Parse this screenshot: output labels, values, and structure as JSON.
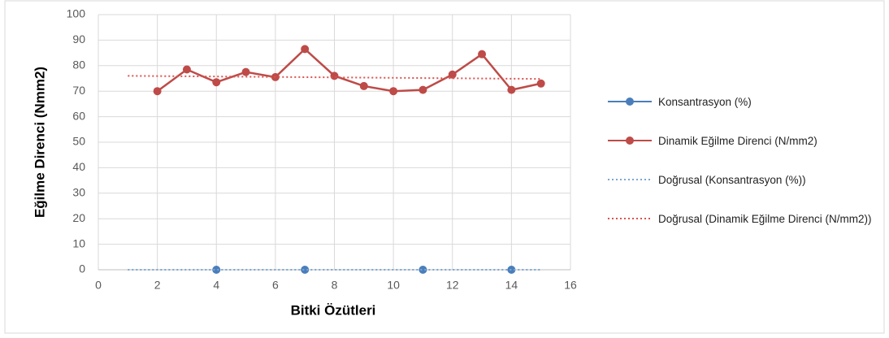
{
  "chart_data": {
    "type": "scatter",
    "xlabel": "Bitki Özütleri",
    "ylabel": "Eğilme Direnci (Nmm2)",
    "xlim": [
      0,
      16
    ],
    "xticks": [
      0,
      2,
      4,
      6,
      8,
      10,
      12,
      14,
      16
    ],
    "ylim": [
      0,
      100
    ],
    "yticks": [
      0,
      10,
      20,
      30,
      40,
      50,
      60,
      70,
      80,
      90,
      100
    ],
    "grid": true,
    "legend": "right",
    "series": [
      {
        "name": "Konsantrasyon (%)",
        "color": "#4a7ebb",
        "x": [
          4,
          7,
          11,
          14
        ],
        "values": [
          0,
          0,
          0,
          0
        ],
        "marker": true,
        "line": false
      },
      {
        "name": "Dinamik Eğilme Direnci (N/mm2)",
        "color": "#be4b48",
        "x": [
          2,
          3,
          4,
          5,
          6,
          7,
          8,
          9,
          10,
          11,
          12,
          13,
          14,
          15
        ],
        "values": [
          70,
          78.5,
          73.5,
          77.5,
          75.5,
          86.5,
          76,
          72,
          70,
          70.5,
          76.5,
          84.5,
          70.5,
          73
        ],
        "marker": true,
        "line": true
      },
      {
        "name": "Doğrusal (Konsantrasyon (%))",
        "color": "#7aa6d6",
        "x": [
          1,
          15
        ],
        "values": [
          0,
          0
        ],
        "marker": false,
        "line": true,
        "dash": true
      },
      {
        "name": "Doğrusal (Dinamik Eğilme Direnci (N/mm2))",
        "color": "#d9534f",
        "x": [
          1,
          15
        ],
        "values": [
          76,
          74.8
        ],
        "marker": false,
        "line": true,
        "dash": true
      }
    ]
  }
}
